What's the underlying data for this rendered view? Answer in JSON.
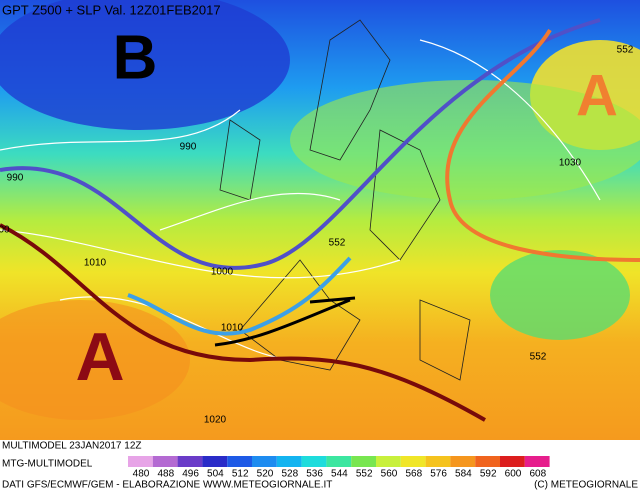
{
  "header": {
    "title": "GPT Z500 + SLP Val. 12Z01FEB2017"
  },
  "map": {
    "systems": [
      "B",
      "A",
      "A"
    ],
    "isobar_labels": [
      "990",
      "990",
      "1000",
      "1010",
      "1010",
      "1020",
      "1030",
      "00"
    ],
    "height_labels": [
      "552",
      "552",
      "552"
    ]
  },
  "footer": {
    "run": "MULTIMODEL 23JAN2017 12Z",
    "model": "MTG-MULTIMODEL",
    "source": "DATI GFS/ECMWF/GEM - ELABORAZIONE WWW.METEOGIORNALE.IT",
    "copyright": "(C) METEOGIORNALE"
  },
  "legend": {
    "values": [
      480,
      488,
      496,
      504,
      512,
      520,
      528,
      536,
      544,
      552,
      560,
      568,
      576,
      584,
      592,
      600,
      608
    ],
    "colors": [
      "#e7a4e7",
      "#b46ad2",
      "#6a3cc8",
      "#2a2cc8",
      "#1e5ae6",
      "#1e8cf0",
      "#14b4f0",
      "#1edcdc",
      "#3ce6a0",
      "#78e650",
      "#c8f03c",
      "#f0e628",
      "#f5c31e",
      "#f5961e",
      "#f0641e",
      "#dc1e1e",
      "#e61e8c"
    ]
  }
}
